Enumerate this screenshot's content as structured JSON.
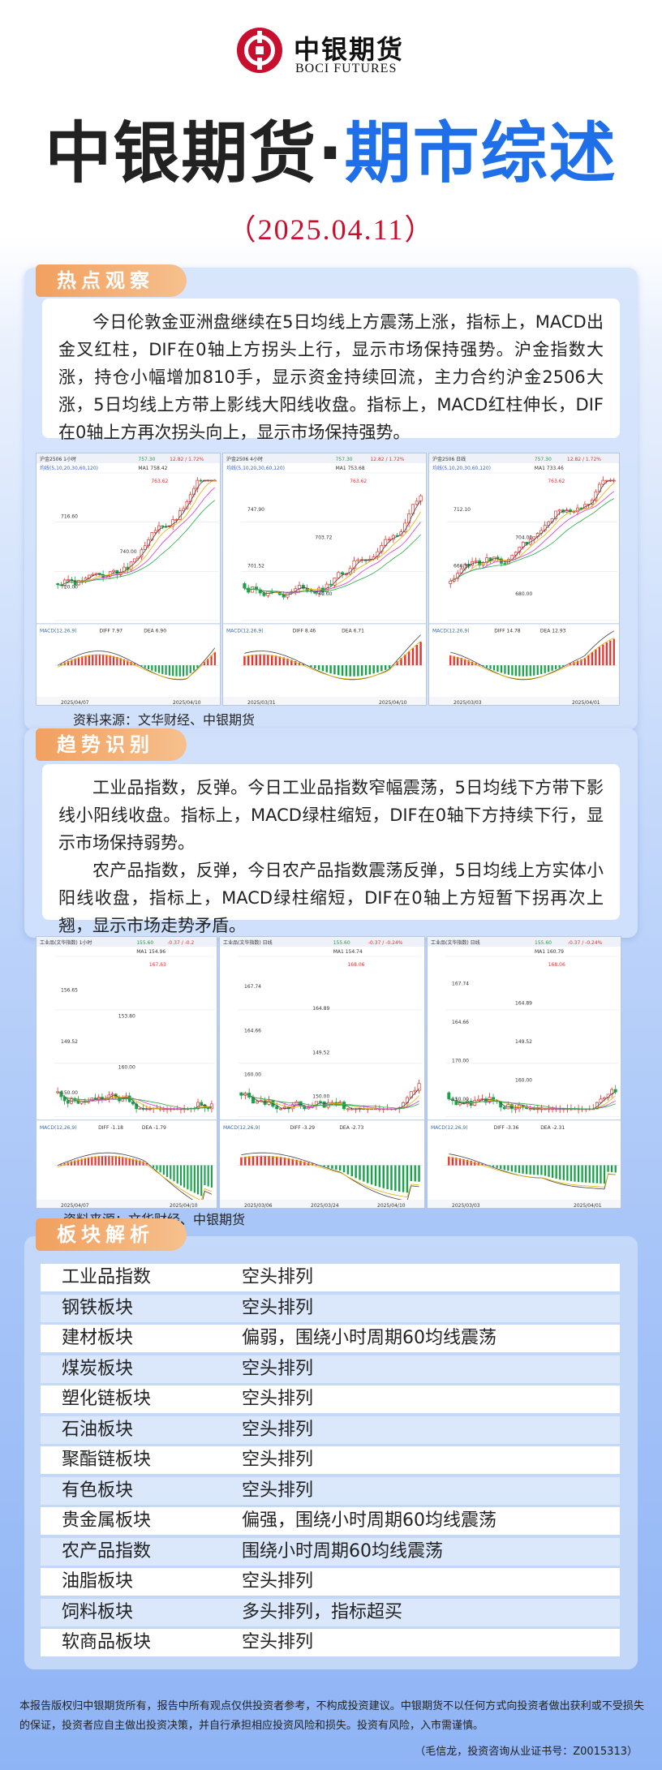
{
  "brand": {
    "cn": "中银期货",
    "en": "BOCI FUTURES"
  },
  "title": {
    "left": "中银期货",
    "dot": "·",
    "right": "期市综述"
  },
  "date": "（2025.04.11）",
  "hot": {
    "tag": "热点观察",
    "text": "今日伦敦金亚洲盘继续在5日均线上方震荡上涨，指标上，MACD出金叉红柱，DIF在0轴上方拐头上行，显示市场保持强势。沪金指数大涨，持仓小幅增加810手，显示资金持续回流，主力合约沪金2506大涨，5日均线上方带上影线大阳线收盘。指标上，MACD红柱伸长，DIF在0轴上方再次拐头向上，显示市场保持强势。",
    "source": "资料来源：文华财经、中银期货"
  },
  "trend": {
    "tag": "趋势识别",
    "para1": "工业品指数，反弹。今日工业品指数窄幅震荡，5日均线下方带下影线小阳线收盘。指标上，MACD绿柱缩短，DIF在0轴下方持续下行，显示市场保持弱势。",
    "para2": "农产品指数，反弹，今日农产品指数震荡反弹，5日均线上方实体小阳线收盘，指标上，MACD绿柱缩短，DIF在0轴上方短暂下拐再次上翘，显示市场走势矛盾。",
    "source": "资料来源：文华财经、中银期货"
  },
  "gold_charts": [
    {
      "head": "沪金2506  1小时",
      "price": "757.30",
      "chg": "12.82 / 1.72%",
      "ma_legend": "均线(5,10,20,30,60,120)",
      "ma1": "MA1 758.42",
      "labels": [
        "763.62",
        "716.60",
        "740.00",
        "720.00"
      ],
      "macd_legend": "MACD(12,26,9)",
      "diff": "DIFF 7.97",
      "dea": "DEA 6.90",
      "dates": [
        "2025/04/07",
        "2025/04/10"
      ]
    },
    {
      "head": "沪金2506  4小时",
      "price": "757.30",
      "chg": "12.82 / 1.72%",
      "ma_legend": "均线(5,10,20,30,60,120)",
      "ma1": "MA1 753.68",
      "labels": [
        "763.62",
        "747.90",
        "703.72",
        "701.52",
        "740.00"
      ],
      "macd_legend": "MACD(12,26,9)",
      "diff": "DIFF 8.46",
      "dea": "DEA 6.71",
      "dates": [
        "2025/03/31",
        "2025/04/10"
      ]
    },
    {
      "head": "沪金2506  日线",
      "price": "757.30",
      "chg": "12.82 / 1.72%",
      "ma_legend": "均线(5,10,20,30,60,120)",
      "ma1": "MA1 733.46",
      "labels": [
        "763.62",
        "712.10",
        "704.00",
        "666.96",
        "680.00"
      ],
      "macd_legend": "MACD(12,26,9)",
      "diff": "DIFF 14.78",
      "dea": "DEA 12.93",
      "dates": [
        "2025/03/03",
        "2025/04/01"
      ]
    }
  ],
  "index_charts": [
    {
      "head": "工业品(文华指数)  1小时",
      "price": "155.60",
      "chg": "-0.37 / -0.2",
      "ma1": "MA1 154.96",
      "labels": [
        "167.63",
        "156.65",
        "153.80",
        "149.52",
        "160.00",
        "150.00"
      ],
      "macd_legend": "MACD(12,26,9)",
      "diff": "DIFF -1.18",
      "dea": "DEA -1.79",
      "dates": [
        "2025/04/07",
        "2025/04/10"
      ]
    },
    {
      "head": "工业品(文华指数)  日线",
      "price": "155.60",
      "chg": "-0.37 / -0.24%",
      "ma1": "MA1 154.74",
      "labels": [
        "168.06",
        "167.74",
        "164.89",
        "164.66",
        "149.52",
        "160.00",
        "150.00"
      ],
      "macd_legend": "MACD(12,26,9)",
      "diff": "DIFF -3.29",
      "dea": "DEA -2.73",
      "dates": [
        "2025/03/06",
        "2025/03/24",
        "2025/04/10"
      ]
    },
    {
      "head": "工业品(文华指数)  日线",
      "price": "155.60",
      "chg": "-0.37 / -0.24%",
      "ma1": "MA1 160.79",
      "labels": [
        "168.06",
        "167.74",
        "164.89",
        "164.66",
        "149.52",
        "170.00",
        "160.00",
        "150.00"
      ],
      "macd_legend": "MACD(12,26,9)",
      "diff": "DIFF -3.36",
      "dea": "DEA -2.31",
      "dates": [
        "2025/03/03",
        "2025/04/01"
      ]
    }
  ],
  "sectors": {
    "tag": "板块解析",
    "rows": [
      {
        "name": "工业品指数",
        "status": "空头排列"
      },
      {
        "name": "钢铁板块",
        "status": "空头排列"
      },
      {
        "name": "建材板块",
        "status": "偏弱，围绕小时周期60均线震荡"
      },
      {
        "name": "煤炭板块",
        "status": "空头排列"
      },
      {
        "name": "塑化链板块",
        "status": "空头排列"
      },
      {
        "name": "石油板块",
        "status": "空头排列"
      },
      {
        "name": "聚酯链板块",
        "status": "空头排列"
      },
      {
        "name": "有色板块",
        "status": "空头排列"
      },
      {
        "name": "贵金属板块",
        "status": "偏强，围绕小时周期60均线震荡"
      },
      {
        "name": "农产品指数",
        "status": "围绕小时周期60均线震荡"
      },
      {
        "name": "油脂板块",
        "status": "空头排列"
      },
      {
        "name": "饲料板块",
        "status": "多头排列，指标超买"
      },
      {
        "name": "软商品板块",
        "status": "空头排列"
      }
    ]
  },
  "disclaimer": "本报告版权归中银期货所有，报告中所有观点仅供投资者参考，不构成投资建议。中银期货不以任何方式向投资者做出获利或不受损失的保证，投资者应自主做出投资决策，并自行承担相应投资风险和损失。投资有风险，入市需谨慎。",
  "credit": "（毛信龙，投资咨询从业证书号：Z0015313）",
  "colors": {
    "brand_red": "#c8102e",
    "title_blue": "#1e6fe8",
    "tag_orange": "#f2a05f",
    "candle_up": "#e5322d",
    "candle_down": "#19a24a"
  }
}
